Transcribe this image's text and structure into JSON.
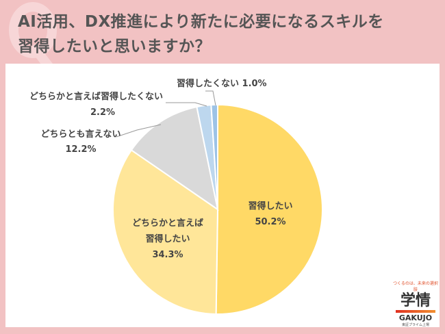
{
  "title_line1": "AI活用、DX推進により新たに必要になるスキルを",
  "title_line2": "習得したいと思いますか？",
  "chart_data": {
    "type": "pie",
    "start": "top, clockwise",
    "slices": [
      {
        "label": "習得したい",
        "value": 50.2,
        "color": "#FFD966"
      },
      {
        "label": "どちらかと言えば習得したい",
        "value": 34.3,
        "color": "#FFE699"
      },
      {
        "label": "どちらとも言えない",
        "value": 12.2,
        "color": "#D9D9D9"
      },
      {
        "label": "どちらかと言えば習得したくない",
        "value": 2.2,
        "color": "#BDD7EE"
      },
      {
        "label": "習得したくない",
        "value": 1.0,
        "color": "#9DC3E6"
      }
    ],
    "data_labels": {
      "s0a": "習得したい",
      "s0b": "50.2%",
      "s1a": "どちらかと言えば",
      "s1b": "習得したい",
      "s1c": "34.3%",
      "s2a": "どちらとも言えない",
      "s2b": "12.2%",
      "s3a": "どちらかと言えば習得したくない",
      "s3b": "2.2%",
      "s4a": "習得したくない 1.0%"
    }
  },
  "logo": {
    "tagline": "つくるのは、未来の選択肢",
    "name_jp": "学情",
    "name_en": "GAKUJO",
    "sub": "東証プライム上場"
  }
}
